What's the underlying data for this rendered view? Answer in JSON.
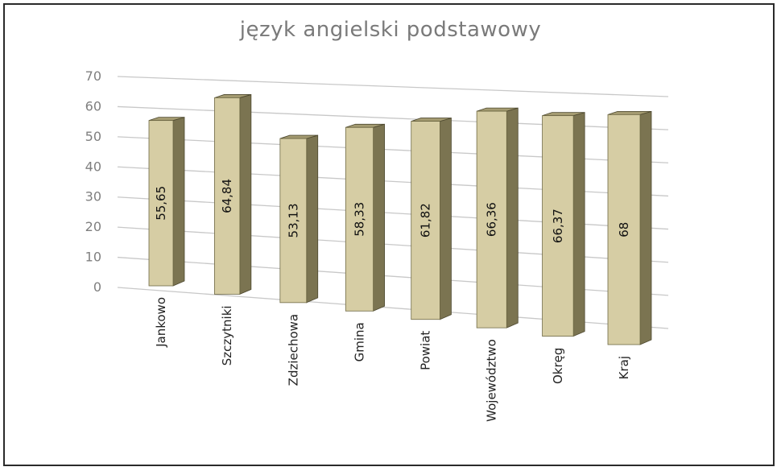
{
  "chart_data": {
    "type": "bar",
    "title": "język angielski podstawowy",
    "categories": [
      "Jankowo",
      "Szczytniki",
      "Zdziechowa",
      "Gmina",
      "Powiat",
      "Województwo",
      "Okręg",
      "Kraj"
    ],
    "values": [
      55.65,
      64.84,
      53.13,
      58.33,
      61.82,
      66.36,
      66.37,
      68
    ],
    "value_labels": [
      "55,65",
      "64,84",
      "53,13",
      "58,33",
      "61,82",
      "66,36",
      "66,37",
      "68"
    ],
    "y_ticks": [
      "0",
      "10",
      "20",
      "30",
      "40",
      "50",
      "60",
      "70"
    ],
    "ylim": [
      0,
      70
    ],
    "grid": true,
    "style": "3d-column",
    "colors": {
      "bar_front": "#d6cda4",
      "bar_side": "#7b7451",
      "bar_top": "#a49b71",
      "grid": "#c8c8c8"
    }
  }
}
